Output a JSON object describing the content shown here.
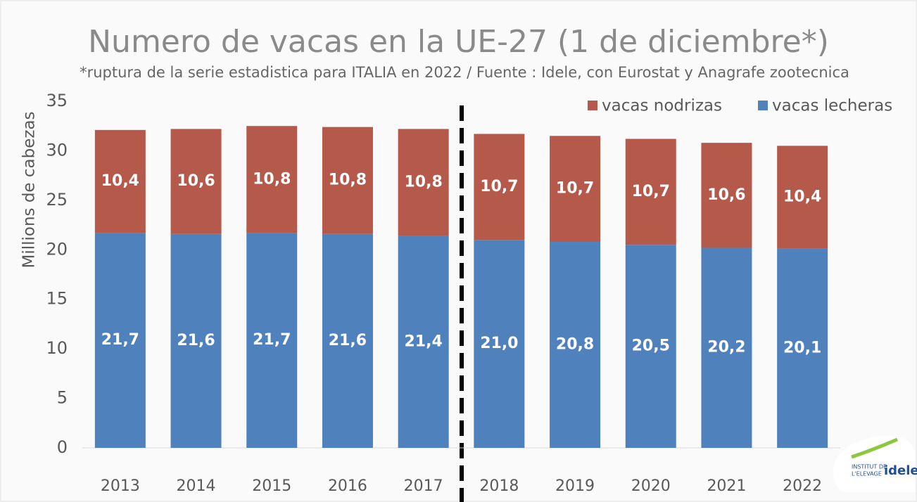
{
  "chart_data": {
    "type": "stacked_bar",
    "title": "Numero de vacas en la UE-27 (1 de diciembre*)",
    "subtitle": "*ruptura de la serie estadistica para ITALIA en 2022 / Fuente :  Idele, con Eurostat y Anagrafe zootecnica",
    "y_label": "Millions de cabezas",
    "categories": [
      "2013",
      "2014",
      "2015",
      "2016",
      "2017",
      "2018",
      "2019",
      "2020",
      "2021",
      "2022"
    ],
    "series": [
      {
        "name": "vacas lecheras",
        "color": "#4f81bd",
        "values": [
          21.7,
          21.6,
          21.7,
          21.6,
          21.4,
          21.0,
          20.8,
          20.5,
          20.2,
          20.1
        ],
        "value_labels": [
          "21,7",
          "21,6",
          "21,7",
          "21,6",
          "21,4",
          "21,0",
          "20,8",
          "20,5",
          "20,2",
          "20,1"
        ]
      },
      {
        "name": "vacas nodrizas",
        "color": "#b5594b",
        "values": [
          10.4,
          10.6,
          10.8,
          10.8,
          10.8,
          10.7,
          10.7,
          10.7,
          10.6,
          10.4
        ],
        "value_labels": [
          "10,4",
          "10,6",
          "10,8",
          "10,8",
          "10,8",
          "10,7",
          "10,7",
          "10,7",
          "10,6",
          "10,4"
        ]
      }
    ],
    "ylim": [
      0,
      35
    ],
    "yticks": [
      0,
      5,
      10,
      15,
      20,
      25,
      30,
      35
    ],
    "legend": "top-right"
  },
  "logo": {
    "line1": "INSTITUT DE",
    "line2": "L'ELEVAGE",
    "brand": "idele"
  }
}
